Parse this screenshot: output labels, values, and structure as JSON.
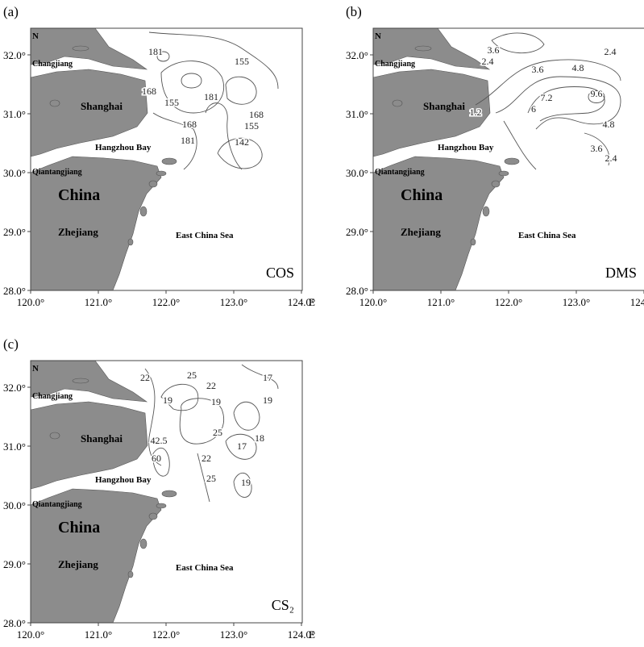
{
  "axes": {
    "x_ticks": [
      {
        "value": 120,
        "label": "120.0°"
      },
      {
        "value": 121,
        "label": "121.0°"
      },
      {
        "value": 122,
        "label": "122.0°"
      },
      {
        "value": 123,
        "label": "123.0°"
      },
      {
        "value": 124,
        "label": "124.0°"
      }
    ],
    "x_unit": "E",
    "y_ticks": [
      {
        "value": 28,
        "label": "28.0°"
      },
      {
        "value": 29,
        "label": "29.0°"
      },
      {
        "value": 30,
        "label": "30.0°"
      },
      {
        "value": 31,
        "label": "31.0°"
      },
      {
        "value": 32,
        "label": "32.0°"
      }
    ]
  },
  "places": [
    "N",
    "Changjiang",
    "Shanghai",
    "Hangzhou Bay",
    "Qiantangjiang",
    "China",
    "Zhejiang",
    "East China Sea"
  ],
  "panels": [
    {
      "label": "(a)",
      "species": "COS",
      "contour_labels": [
        181,
        155,
        168,
        155,
        181,
        168,
        168,
        155,
        181,
        142
      ]
    },
    {
      "label": "(b)",
      "species": "DMS",
      "contour_labels": [
        3.6,
        2.4,
        2.4,
        3.6,
        4.8,
        1.2,
        6,
        7.2,
        9.6,
        4.8,
        3.6,
        2.4
      ]
    },
    {
      "label": "(c)",
      "species": "CS₂",
      "contour_labels": [
        22,
        25,
        22,
        17,
        19,
        19,
        19,
        25,
        18,
        42.5,
        17,
        60,
        22,
        25,
        19
      ]
    }
  ]
}
